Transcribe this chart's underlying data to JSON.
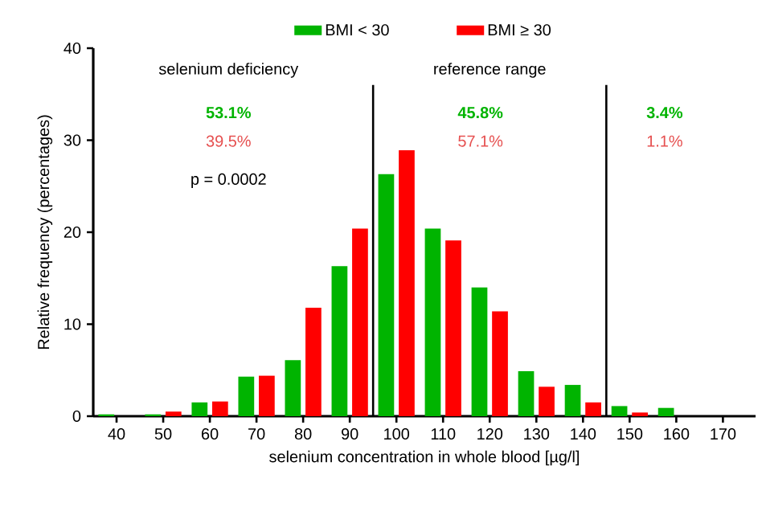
{
  "chart_data": {
    "type": "bar",
    "xlabel": "selenium concentration in whole blood [µg/l]",
    "ylabel": "Relative frequency (percentages)",
    "x": [
      40,
      50,
      60,
      70,
      80,
      90,
      100,
      110,
      120,
      130,
      140,
      150,
      160,
      170
    ],
    "series": [
      {
        "name": "BMI < 30",
        "color": "#00b400",
        "values": [
          0.2,
          0.2,
          1.5,
          4.3,
          6.1,
          16.3,
          26.3,
          20.4,
          14.0,
          4.9,
          3.4,
          1.1,
          0.9,
          0
        ]
      },
      {
        "name": "BMI ≥ 30",
        "color": "#ff0000",
        "values": [
          0,
          0.5,
          1.6,
          4.4,
          11.8,
          20.4,
          28.9,
          19.1,
          11.4,
          3.2,
          1.5,
          0.4,
          0,
          0
        ]
      }
    ],
    "xlim": [
      35,
      177
    ],
    "xticks": [
      40,
      50,
      60,
      70,
      80,
      90,
      100,
      110,
      120,
      130,
      140,
      150,
      160,
      170
    ],
    "ylim": [
      0,
      40
    ],
    "yticks": [
      0,
      10,
      20,
      30,
      40
    ],
    "ref_lines": [
      {
        "axis": "x",
        "value": 95,
        "color": "#000000"
      },
      {
        "axis": "x",
        "value": 145,
        "color": "#000000"
      }
    ],
    "annotations": [
      "selenium deficiency",
      "reference range",
      "53.1%",
      "39.5%",
      "45.8%",
      "57.1%",
      "3.4%",
      "1.1%",
      "p = 0.0002"
    ],
    "legend": "top",
    "grid": false
  }
}
